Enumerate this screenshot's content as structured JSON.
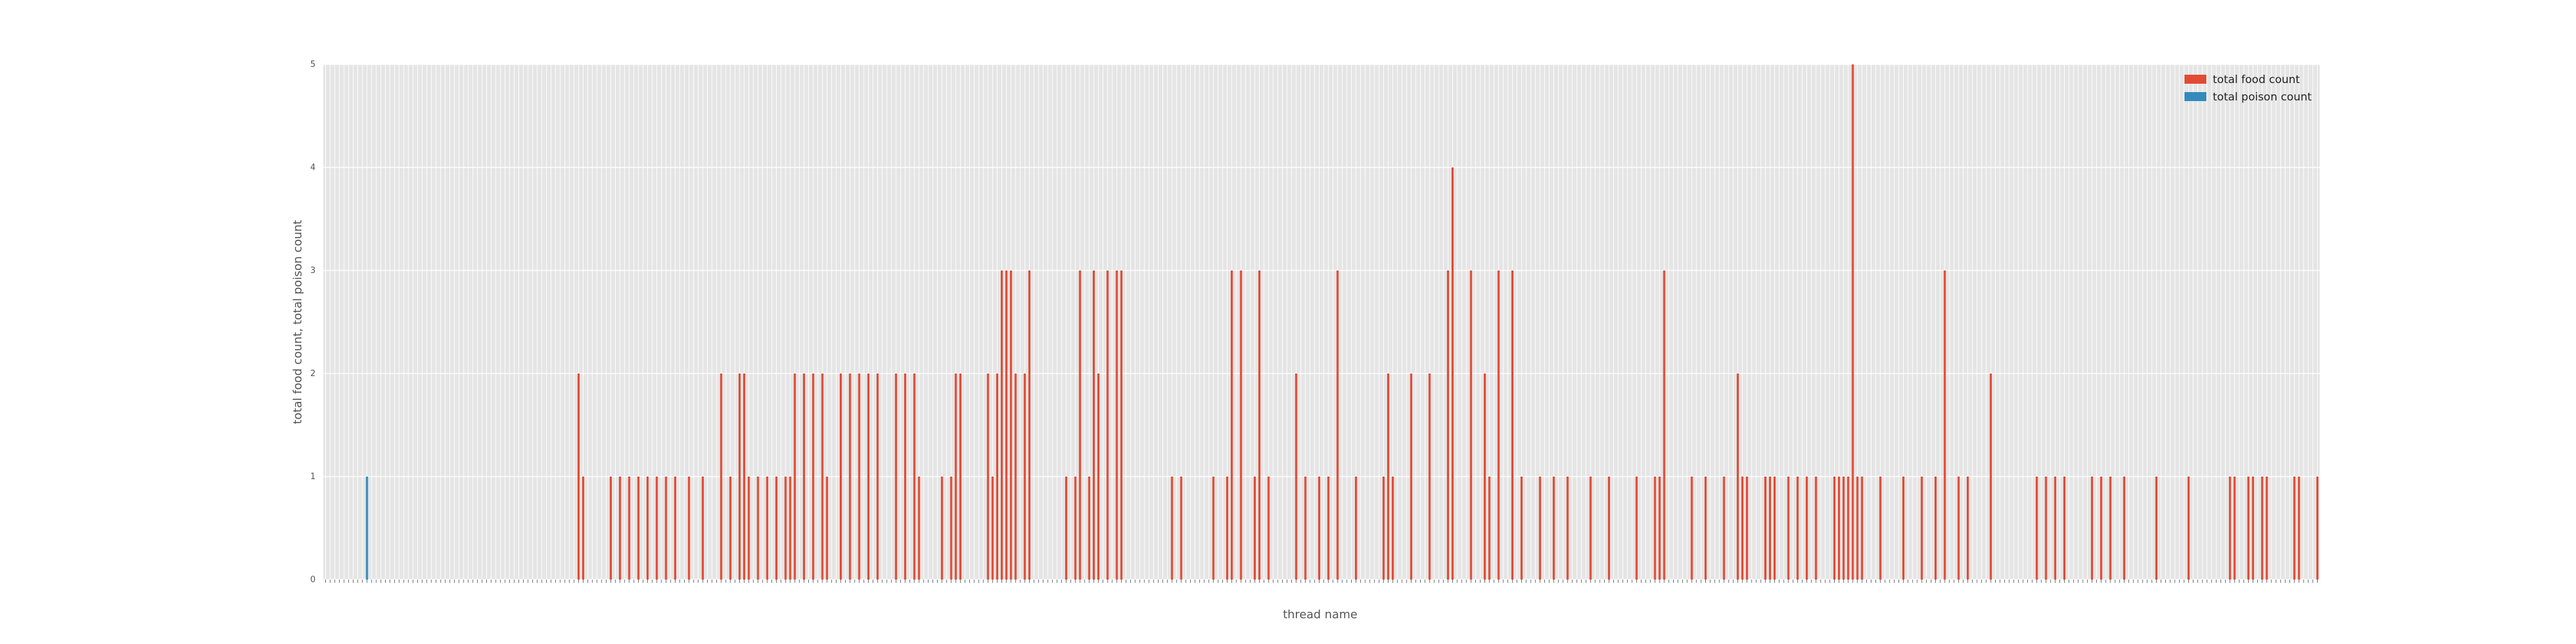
{
  "chart_data": {
    "type": "bar",
    "xlabel": "thread name",
    "ylabel": "total food count, total poison count",
    "ylim": [
      0,
      5
    ],
    "y_ticks": [
      "0",
      "1",
      "2",
      "3",
      "4",
      "5"
    ],
    "category_count": 434,
    "grid": true,
    "legend_position": "top-right",
    "series": [
      {
        "name": "total food count",
        "color": "#E24A33",
        "points": [
          [
            55,
            2
          ],
          [
            56,
            1
          ],
          [
            62,
            1
          ],
          [
            64,
            1
          ],
          [
            66,
            1
          ],
          [
            68,
            1
          ],
          [
            70,
            1
          ],
          [
            72,
            1
          ],
          [
            74,
            1
          ],
          [
            76,
            1
          ],
          [
            79,
            1
          ],
          [
            82,
            1
          ],
          [
            86,
            2
          ],
          [
            88,
            1
          ],
          [
            90,
            2
          ],
          [
            91,
            2
          ],
          [
            92,
            1
          ],
          [
            94,
            1
          ],
          [
            96,
            1
          ],
          [
            98,
            1
          ],
          [
            100,
            1
          ],
          [
            101,
            1
          ],
          [
            102,
            2
          ],
          [
            104,
            2
          ],
          [
            106,
            2
          ],
          [
            108,
            2
          ],
          [
            109,
            1
          ],
          [
            112,
            2
          ],
          [
            114,
            2
          ],
          [
            116,
            2
          ],
          [
            118,
            2
          ],
          [
            120,
            2
          ],
          [
            124,
            2
          ],
          [
            126,
            2
          ],
          [
            128,
            2
          ],
          [
            129,
            1
          ],
          [
            134,
            1
          ],
          [
            136,
            1
          ],
          [
            137,
            2
          ],
          [
            138,
            2
          ],
          [
            144,
            2
          ],
          [
            145,
            1
          ],
          [
            146,
            2
          ],
          [
            147,
            3
          ],
          [
            148,
            3
          ],
          [
            149,
            3
          ],
          [
            150,
            2
          ],
          [
            152,
            2
          ],
          [
            153,
            3
          ],
          [
            161,
            1
          ],
          [
            163,
            1
          ],
          [
            164,
            3
          ],
          [
            166,
            1
          ],
          [
            167,
            3
          ],
          [
            168,
            2
          ],
          [
            170,
            3
          ],
          [
            172,
            3
          ],
          [
            173,
            3
          ],
          [
            184,
            1
          ],
          [
            186,
            1
          ],
          [
            193,
            1
          ],
          [
            196,
            1
          ],
          [
            197,
            3
          ],
          [
            199,
            3
          ],
          [
            202,
            1
          ],
          [
            203,
            3
          ],
          [
            205,
            1
          ],
          [
            211,
            2
          ],
          [
            213,
            1
          ],
          [
            216,
            1
          ],
          [
            218,
            1
          ],
          [
            220,
            3
          ],
          [
            224,
            1
          ],
          [
            230,
            1
          ],
          [
            231,
            2
          ],
          [
            232,
            1
          ],
          [
            236,
            2
          ],
          [
            240,
            2
          ],
          [
            244,
            3
          ],
          [
            245,
            4
          ],
          [
            249,
            3
          ],
          [
            252,
            2
          ],
          [
            253,
            1
          ],
          [
            255,
            3
          ],
          [
            258,
            3
          ],
          [
            260,
            1
          ],
          [
            264,
            1
          ],
          [
            267,
            1
          ],
          [
            270,
            1
          ],
          [
            275,
            1
          ],
          [
            279,
            1
          ],
          [
            285,
            1
          ],
          [
            289,
            1
          ],
          [
            290,
            1
          ],
          [
            291,
            3
          ],
          [
            297,
            1
          ],
          [
            300,
            1
          ],
          [
            304,
            1
          ],
          [
            307,
            2
          ],
          [
            308,
            1
          ],
          [
            309,
            1
          ],
          [
            313,
            1
          ],
          [
            322,
            1
          ],
          [
            314,
            1
          ],
          [
            313,
            1
          ],
          [
            315,
            1
          ],
          [
            318,
            1
          ],
          [
            320,
            1
          ],
          [
            324,
            1
          ],
          [
            328,
            1
          ],
          [
            329,
            1
          ],
          [
            330,
            1
          ],
          [
            331,
            1
          ],
          [
            333,
            1
          ],
          [
            334,
            1
          ],
          [
            332,
            5
          ],
          [
            338,
            1
          ],
          [
            343,
            1
          ],
          [
            347,
            1
          ],
          [
            350,
            1
          ],
          [
            352,
            3
          ],
          [
            355,
            1
          ],
          [
            357,
            1
          ],
          [
            362,
            2
          ],
          [
            372,
            1
          ],
          [
            374,
            1
          ],
          [
            376,
            1
          ],
          [
            378,
            1
          ],
          [
            384,
            1
          ],
          [
            386,
            1
          ],
          [
            388,
            1
          ],
          [
            391,
            1
          ],
          [
            398,
            1
          ],
          [
            405,
            1
          ],
          [
            414,
            1
          ],
          [
            415,
            1
          ],
          [
            418,
            1
          ],
          [
            419,
            1
          ],
          [
            421,
            1
          ],
          [
            422,
            1
          ],
          [
            428,
            1
          ],
          [
            429,
            1
          ],
          [
            433,
            1
          ]
        ]
      },
      {
        "name": "total poison count",
        "color": "#348ABD",
        "points": [
          [
            9,
            1
          ]
        ]
      }
    ]
  }
}
